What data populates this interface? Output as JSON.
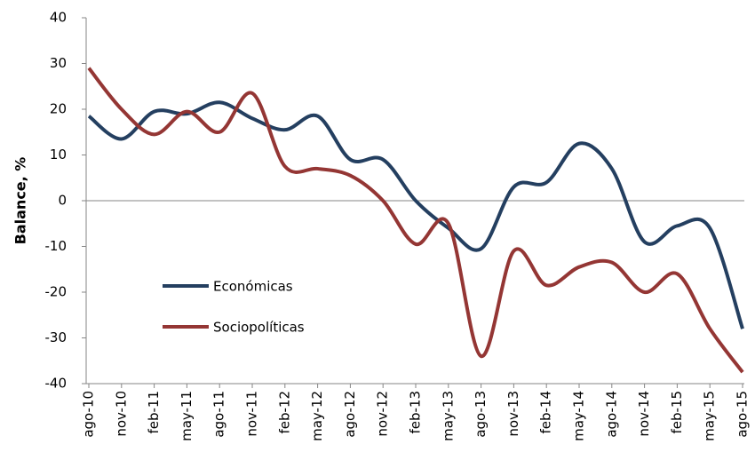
{
  "chart_data": {
    "type": "line",
    "y_label": "Balance, %",
    "categories": [
      "ago-10",
      "nov-10",
      "feb-11",
      "may-11",
      "ago-11",
      "nov-11",
      "feb-12",
      "may-12",
      "ago-12",
      "nov-12",
      "feb-13",
      "may-13",
      "ago-13",
      "nov-13",
      "feb-14",
      "may-14",
      "ago-14",
      "nov-14",
      "feb-15",
      "may-15",
      "ago-15"
    ],
    "series": [
      {
        "name": "Económicas",
        "color": "#243f60",
        "values": [
          18.5,
          13.5,
          19.5,
          19,
          21.5,
          18,
          15.5,
          18.5,
          9,
          9,
          0,
          -6,
          -10.5,
          3,
          4,
          12.5,
          7,
          -9,
          -5.5,
          -6,
          -28
        ]
      },
      {
        "name": "Sociopolíticas",
        "color": "#943634",
        "values": [
          29,
          20,
          14.5,
          19.5,
          15,
          23.5,
          7.5,
          7,
          5.5,
          0,
          -9.5,
          -5,
          -34,
          -11,
          -18.5,
          -14.5,
          -13.5,
          -20,
          -16,
          -28,
          -37.5
        ]
      }
    ],
    "ylim": [
      -40,
      40
    ],
    "yticks": [
      -40,
      -30,
      -20,
      -10,
      0,
      10,
      20,
      30,
      40
    ],
    "smooth": true,
    "legend": "left"
  }
}
